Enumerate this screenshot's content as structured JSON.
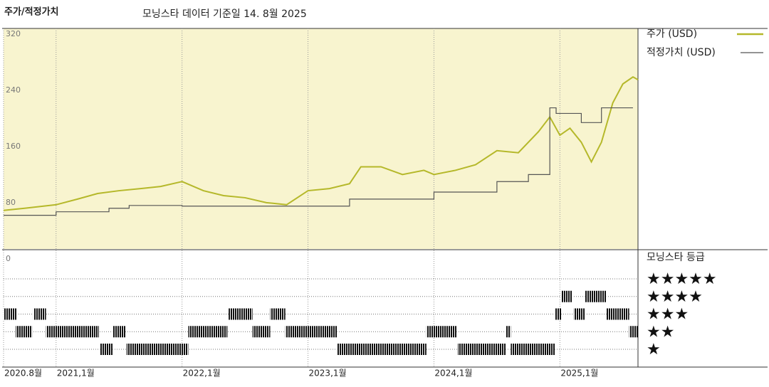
{
  "chart_data": [
    {
      "type": "line",
      "title": "주가/적정가치",
      "subtitle": "모닝스타 데이터 기준일 14. 8월 2025",
      "xlim": [
        2020.583,
        2025.62
      ],
      "xticks": [
        {
          "value": 2020.583,
          "label": "2020.8월"
        },
        {
          "value": 2021,
          "label": "2021,1월"
        },
        {
          "value": 2022,
          "label": "2022,1월"
        },
        {
          "value": 2023,
          "label": "2023,1월"
        },
        {
          "value": 2024,
          "label": "2024,1월"
        },
        {
          "value": 2025,
          "label": "2025,1월"
        }
      ],
      "ylim": [
        14,
        328
      ],
      "yticks": [
        0,
        80,
        160,
        240,
        320
      ],
      "xgrid": true,
      "series": [
        {
          "name": "주가 (USD)",
          "color": "#b5b82a",
          "x": [
            2020.583,
            2020.75,
            2021.0,
            2021.17,
            2021.33,
            2021.5,
            2021.67,
            2021.83,
            2022.0,
            2022.17,
            2022.33,
            2022.5,
            2022.67,
            2022.83,
            2023.0,
            2023.17,
            2023.33,
            2023.42,
            2023.58,
            2023.75,
            2023.92,
            2024.0,
            2024.17,
            2024.33,
            2024.5,
            2024.67,
            2024.83,
            2024.92,
            2025.0,
            2025.08,
            2025.17,
            2025.25,
            2025.33,
            2025.42,
            2025.5,
            2025.58,
            2025.62
          ],
          "values": [
            69,
            72,
            77,
            85,
            93,
            97,
            100,
            103,
            110,
            97,
            90,
            87,
            80,
            77,
            97,
            100,
            107,
            131,
            131,
            120,
            126,
            120,
            126,
            134,
            154,
            151,
            181,
            202,
            176,
            186,
            166,
            138,
            166,
            222,
            249,
            259,
            255
          ]
        },
        {
          "name": "적정가치 (USD)",
          "color": "#555555",
          "step": true,
          "x": [
            2020.583,
            2021.0,
            2021.42,
            2021.58,
            2022.0,
            2023.33,
            2024.0,
            2024.5,
            2024.75,
            2024.92,
            2024.97,
            2025.17,
            2025.33,
            2025.58
          ],
          "values": [
            62,
            67,
            72,
            76,
            75,
            85,
            95,
            110,
            120,
            215,
            207,
            194,
            215,
            215
          ]
        }
      ]
    },
    {
      "type": "timeline",
      "title": "모닝스타 등급",
      "levels": [
        {
          "value": 5,
          "label": "★★★★★"
        },
        {
          "value": 4,
          "label": "★★★★"
        },
        {
          "value": 3,
          "label": "★★★"
        },
        {
          "value": 2,
          "label": "★★"
        },
        {
          "value": 1,
          "label": "★"
        }
      ],
      "periods": [
        {
          "start": 2020.583,
          "end": 2020.69,
          "stars": 3
        },
        {
          "start": 2020.68,
          "end": 2020.81,
          "stars": 2
        },
        {
          "start": 2020.82,
          "end": 2020.92,
          "stars": 3
        },
        {
          "start": 2020.92,
          "end": 2021.34,
          "stars": 2
        },
        {
          "start": 2021.35,
          "end": 2021.45,
          "stars": 1
        },
        {
          "start": 2021.45,
          "end": 2021.55,
          "stars": 2
        },
        {
          "start": 2021.56,
          "end": 2022.05,
          "stars": 1
        },
        {
          "start": 2022.05,
          "end": 2022.36,
          "stars": 2
        },
        {
          "start": 2022.37,
          "end": 2022.56,
          "stars": 3
        },
        {
          "start": 2022.56,
          "end": 2022.7,
          "stars": 2
        },
        {
          "start": 2022.7,
          "end": 2022.82,
          "stars": 3
        },
        {
          "start": 2022.82,
          "end": 2023.23,
          "stars": 2
        },
        {
          "start": 2023.23,
          "end": 2023.94,
          "stars": 1
        },
        {
          "start": 2023.94,
          "end": 2024.18,
          "stars": 2
        },
        {
          "start": 2024.19,
          "end": 2024.57,
          "stars": 1
        },
        {
          "start": 2024.57,
          "end": 2024.61,
          "stars": 2
        },
        {
          "start": 2024.61,
          "end": 2024.96,
          "stars": 1
        },
        {
          "start": 2024.96,
          "end": 2025.01,
          "stars": 3
        },
        {
          "start": 2025.01,
          "end": 2025.1,
          "stars": 4
        },
        {
          "start": 2025.11,
          "end": 2025.2,
          "stars": 3
        },
        {
          "start": 2025.2,
          "end": 2025.37,
          "stars": 4
        },
        {
          "start": 2025.37,
          "end": 2025.55,
          "stars": 3
        },
        {
          "start": 2025.55,
          "end": 2025.62,
          "stars": 2
        }
      ]
    }
  ]
}
